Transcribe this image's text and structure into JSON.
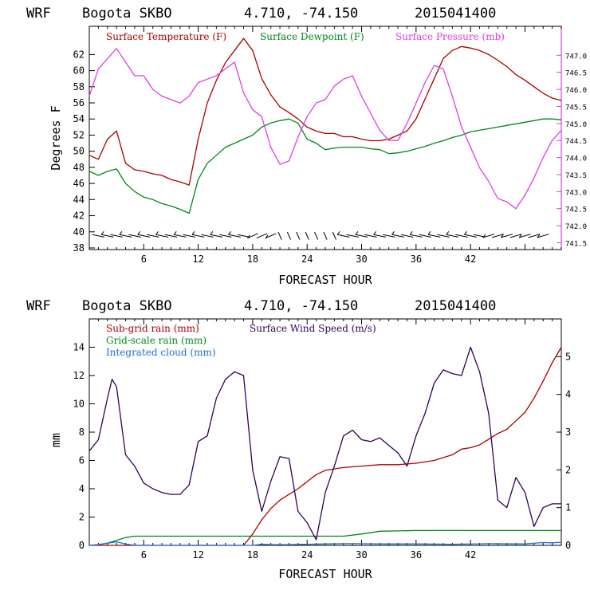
{
  "chart_data": [
    {
      "type": "line",
      "header": {
        "model": "WRF",
        "station": "Bogota SKBO",
        "coords": "4.710, -74.150",
        "run": "2015041400"
      },
      "xlabel": "FORECAST HOUR",
      "ylabel": "Degrees F",
      "xlim": [
        0,
        52
      ],
      "ylim": [
        37.8,
        65.5
      ],
      "y2lim": [
        741.3,
        747.85
      ],
      "x_ticks": [
        "6",
        "12",
        "18",
        "24",
        "30",
        "36",
        "42"
      ],
      "y_ticks": [
        "38",
        "40",
        "42",
        "44",
        "46",
        "48",
        "50",
        "52",
        "54",
        "56",
        "58",
        "60",
        "62"
      ],
      "y2_ticks": [
        "741.5",
        "742.0",
        "742.5",
        "743.0",
        "743.5",
        "744.0",
        "744.5",
        "745.0",
        "745.5",
        "746.0",
        "746.5",
        "747.0"
      ],
      "series": [
        {
          "name": "Surface Temperature (F)",
          "color": "#aa0000",
          "axis": "left",
          "x": [
            0,
            1,
            2,
            3,
            4,
            5,
            6,
            7,
            8,
            9,
            10,
            11,
            12,
            13,
            14,
            15,
            16,
            17,
            18,
            19,
            20,
            21,
            22,
            23,
            24,
            25,
            26,
            27,
            28,
            29,
            30,
            31,
            32,
            33,
            34,
            35,
            36,
            37,
            38,
            39,
            40,
            41,
            42,
            43,
            44,
            45,
            46,
            47,
            48,
            49,
            50,
            51,
            52
          ],
          "y": [
            49.5,
            49,
            51.5,
            52.5,
            48.5,
            47.7,
            47.5,
            47.2,
            47,
            46.5,
            46.2,
            45.8,
            51.5,
            56,
            58.8,
            61,
            62.5,
            64,
            62.5,
            59,
            57,
            55.5,
            54.8,
            54,
            53,
            52.5,
            52.2,
            52.2,
            51.8,
            51.8,
            51.5,
            51.3,
            51.3,
            51.5,
            52,
            52.5,
            54,
            56.5,
            59,
            61.5,
            62.5,
            63,
            62.8,
            62.5,
            62,
            61.3,
            60.5,
            59.5,
            58.8,
            58,
            57.2,
            56.6,
            56.3
          ]
        },
        {
          "name": "Surface Dewpoint (F)",
          "color": "#00881c",
          "axis": "left",
          "x": [
            0,
            1,
            2,
            3,
            4,
            5,
            6,
            7,
            8,
            9,
            10,
            11,
            12,
            13,
            14,
            15,
            16,
            17,
            18,
            19,
            20,
            21,
            22,
            23,
            24,
            25,
            26,
            27,
            28,
            29,
            30,
            31,
            32,
            33,
            34,
            35,
            36,
            37,
            38,
            39,
            40,
            41,
            42,
            43,
            44,
            45,
            46,
            47,
            48,
            49,
            50,
            51,
            52
          ],
          "y": [
            47.5,
            47,
            47.5,
            47.8,
            46,
            45,
            44.3,
            44,
            43.5,
            43.2,
            42.8,
            42.3,
            46.5,
            48.5,
            49.5,
            50.5,
            51,
            51.5,
            52,
            53,
            53.5,
            53.8,
            54,
            53.5,
            51.5,
            51,
            50.2,
            50.4,
            50.5,
            50.5,
            50.5,
            50.3,
            50.2,
            49.7,
            49.8,
            50,
            50.3,
            50.6,
            51,
            51.3,
            51.7,
            52,
            52.4,
            52.6,
            52.8,
            53,
            53.2,
            53.4,
            53.6,
            53.8,
            54,
            54,
            53.9
          ]
        },
        {
          "name": "Surface Pressure (mb)",
          "color": "#e040e0",
          "axis": "right",
          "x": [
            0,
            1,
            2,
            3,
            4,
            5,
            6,
            7,
            8,
            9,
            10,
            11,
            12,
            13,
            14,
            15,
            16,
            17,
            18,
            19,
            20,
            21,
            22,
            23,
            24,
            25,
            26,
            27,
            28,
            29,
            30,
            31,
            32,
            33,
            34,
            35,
            36,
            37,
            38,
            39,
            40,
            41,
            42,
            43,
            44,
            45,
            46,
            47,
            48,
            49,
            50,
            51,
            52
          ],
          "y": [
            745.8,
            746.6,
            746.9,
            747.2,
            746.8,
            746.4,
            746.4,
            746.0,
            745.8,
            745.7,
            745.6,
            745.8,
            746.2,
            746.3,
            746.4,
            746.6,
            746.8,
            745.9,
            745.4,
            745.2,
            744.3,
            743.8,
            743.9,
            744.6,
            745.2,
            745.6,
            745.7,
            746.1,
            746.3,
            746.4,
            745.8,
            745.3,
            744.8,
            744.5,
            744.5,
            745.0,
            745.6,
            746.2,
            746.7,
            746.6,
            745.8,
            744.9,
            744.3,
            743.7,
            743.3,
            742.8,
            742.7,
            742.5,
            742.9,
            743.4,
            744.0,
            744.5,
            744.8
          ]
        }
      ],
      "wind_barbs_row": true
    },
    {
      "type": "line",
      "header": {
        "model": "WRF",
        "station": "Bogota SKBO",
        "coords": "4.710, -74.150",
        "run": "2015041400"
      },
      "xlabel": "FORECAST HOUR",
      "ylabel": "mm",
      "xlim": [
        0,
        52
      ],
      "ylim": [
        0,
        16
      ],
      "y2lim": [
        0,
        6
      ],
      "x_ticks": [
        "6",
        "12",
        "18",
        "24",
        "30",
        "36",
        "42"
      ],
      "y_ticks": [
        "0",
        "2",
        "4",
        "6",
        "8",
        "10",
        "12",
        "14"
      ],
      "y2_ticks": [
        "0",
        "1",
        "2",
        "3",
        "4",
        "5"
      ],
      "series": [
        {
          "name": "Sub-grid rain (mm)",
          "color": "#aa0000",
          "axis": "left",
          "x": [
            0,
            17,
            18,
            19,
            20,
            21,
            22,
            23,
            24,
            25,
            26,
            27,
            28,
            30,
            32,
            34,
            36,
            38,
            40,
            41,
            42,
            43,
            44,
            45,
            46,
            47,
            48,
            49,
            50,
            51,
            52
          ],
          "y": [
            0,
            0,
            0.8,
            1.8,
            2.6,
            3.2,
            3.6,
            4.0,
            4.5,
            5.0,
            5.3,
            5.4,
            5.5,
            5.6,
            5.7,
            5.7,
            5.8,
            6.0,
            6.4,
            6.8,
            6.9,
            7.1,
            7.5,
            7.9,
            8.2,
            8.8,
            9.4,
            10.4,
            11.6,
            12.9,
            14.0
          ]
        },
        {
          "name": "Grid-scale rain (mm)",
          "color": "#00881c",
          "axis": "left",
          "x": [
            0,
            1,
            2,
            3,
            4,
            5,
            6,
            8,
            12,
            18,
            24,
            28,
            30,
            32,
            36,
            40,
            44,
            48,
            52
          ],
          "y": [
            0,
            0.05,
            0.15,
            0.35,
            0.55,
            0.65,
            0.65,
            0.65,
            0.65,
            0.65,
            0.65,
            0.65,
            0.8,
            1.0,
            1.05,
            1.05,
            1.05,
            1.05,
            1.05
          ]
        },
        {
          "name": "Integrated cloud (mm)",
          "color": "#1f6fd0",
          "axis": "left",
          "x": [
            0,
            1,
            2,
            3,
            4,
            5,
            6,
            10,
            14,
            18,
            19,
            20,
            22,
            24,
            26,
            28,
            30,
            32,
            36,
            40,
            44,
            48,
            50,
            51,
            52
          ],
          "y": [
            0,
            0.05,
            0.15,
            0.25,
            0.1,
            0,
            0,
            0,
            0,
            0,
            0.08,
            0.05,
            0.05,
            0.08,
            0.1,
            0.12,
            0.12,
            0.1,
            0.1,
            0.08,
            0.12,
            0.1,
            0.2,
            0.18,
            0.22
          ]
        },
        {
          "name": "Surface Wind Speed (m/s)",
          "color": "#330055",
          "axis": "right",
          "x": [
            0,
            1,
            2,
            2.5,
            3,
            4,
            5,
            6,
            7,
            8,
            9,
            10,
            11,
            12,
            13,
            14,
            15,
            16,
            17,
            18,
            19,
            20,
            21,
            22,
            23,
            24,
            25,
            26,
            27,
            28,
            29,
            30,
            31,
            32,
            33,
            34,
            35,
            36,
            37,
            38,
            39,
            40,
            41,
            42,
            43,
            44,
            45,
            46,
            47,
            48,
            49,
            50,
            51,
            52
          ],
          "y": [
            2.5,
            2.8,
            3.9,
            4.4,
            4.2,
            2.4,
            2.1,
            1.65,
            1.5,
            1.4,
            1.35,
            1.35,
            1.6,
            2.75,
            2.9,
            3.9,
            4.4,
            4.6,
            4.5,
            2.0,
            0.9,
            1.7,
            2.35,
            2.3,
            0.9,
            0.6,
            0.15,
            1.4,
            2.1,
            2.9,
            3.05,
            2.8,
            2.75,
            2.85,
            2.65,
            2.45,
            2.1,
            2.9,
            3.5,
            4.3,
            4.65,
            4.55,
            4.5,
            5.25,
            4.6,
            3.5,
            1.2,
            1.0,
            1.8,
            1.4,
            0.5,
            1.0,
            1.1,
            1.1
          ]
        }
      ]
    }
  ]
}
